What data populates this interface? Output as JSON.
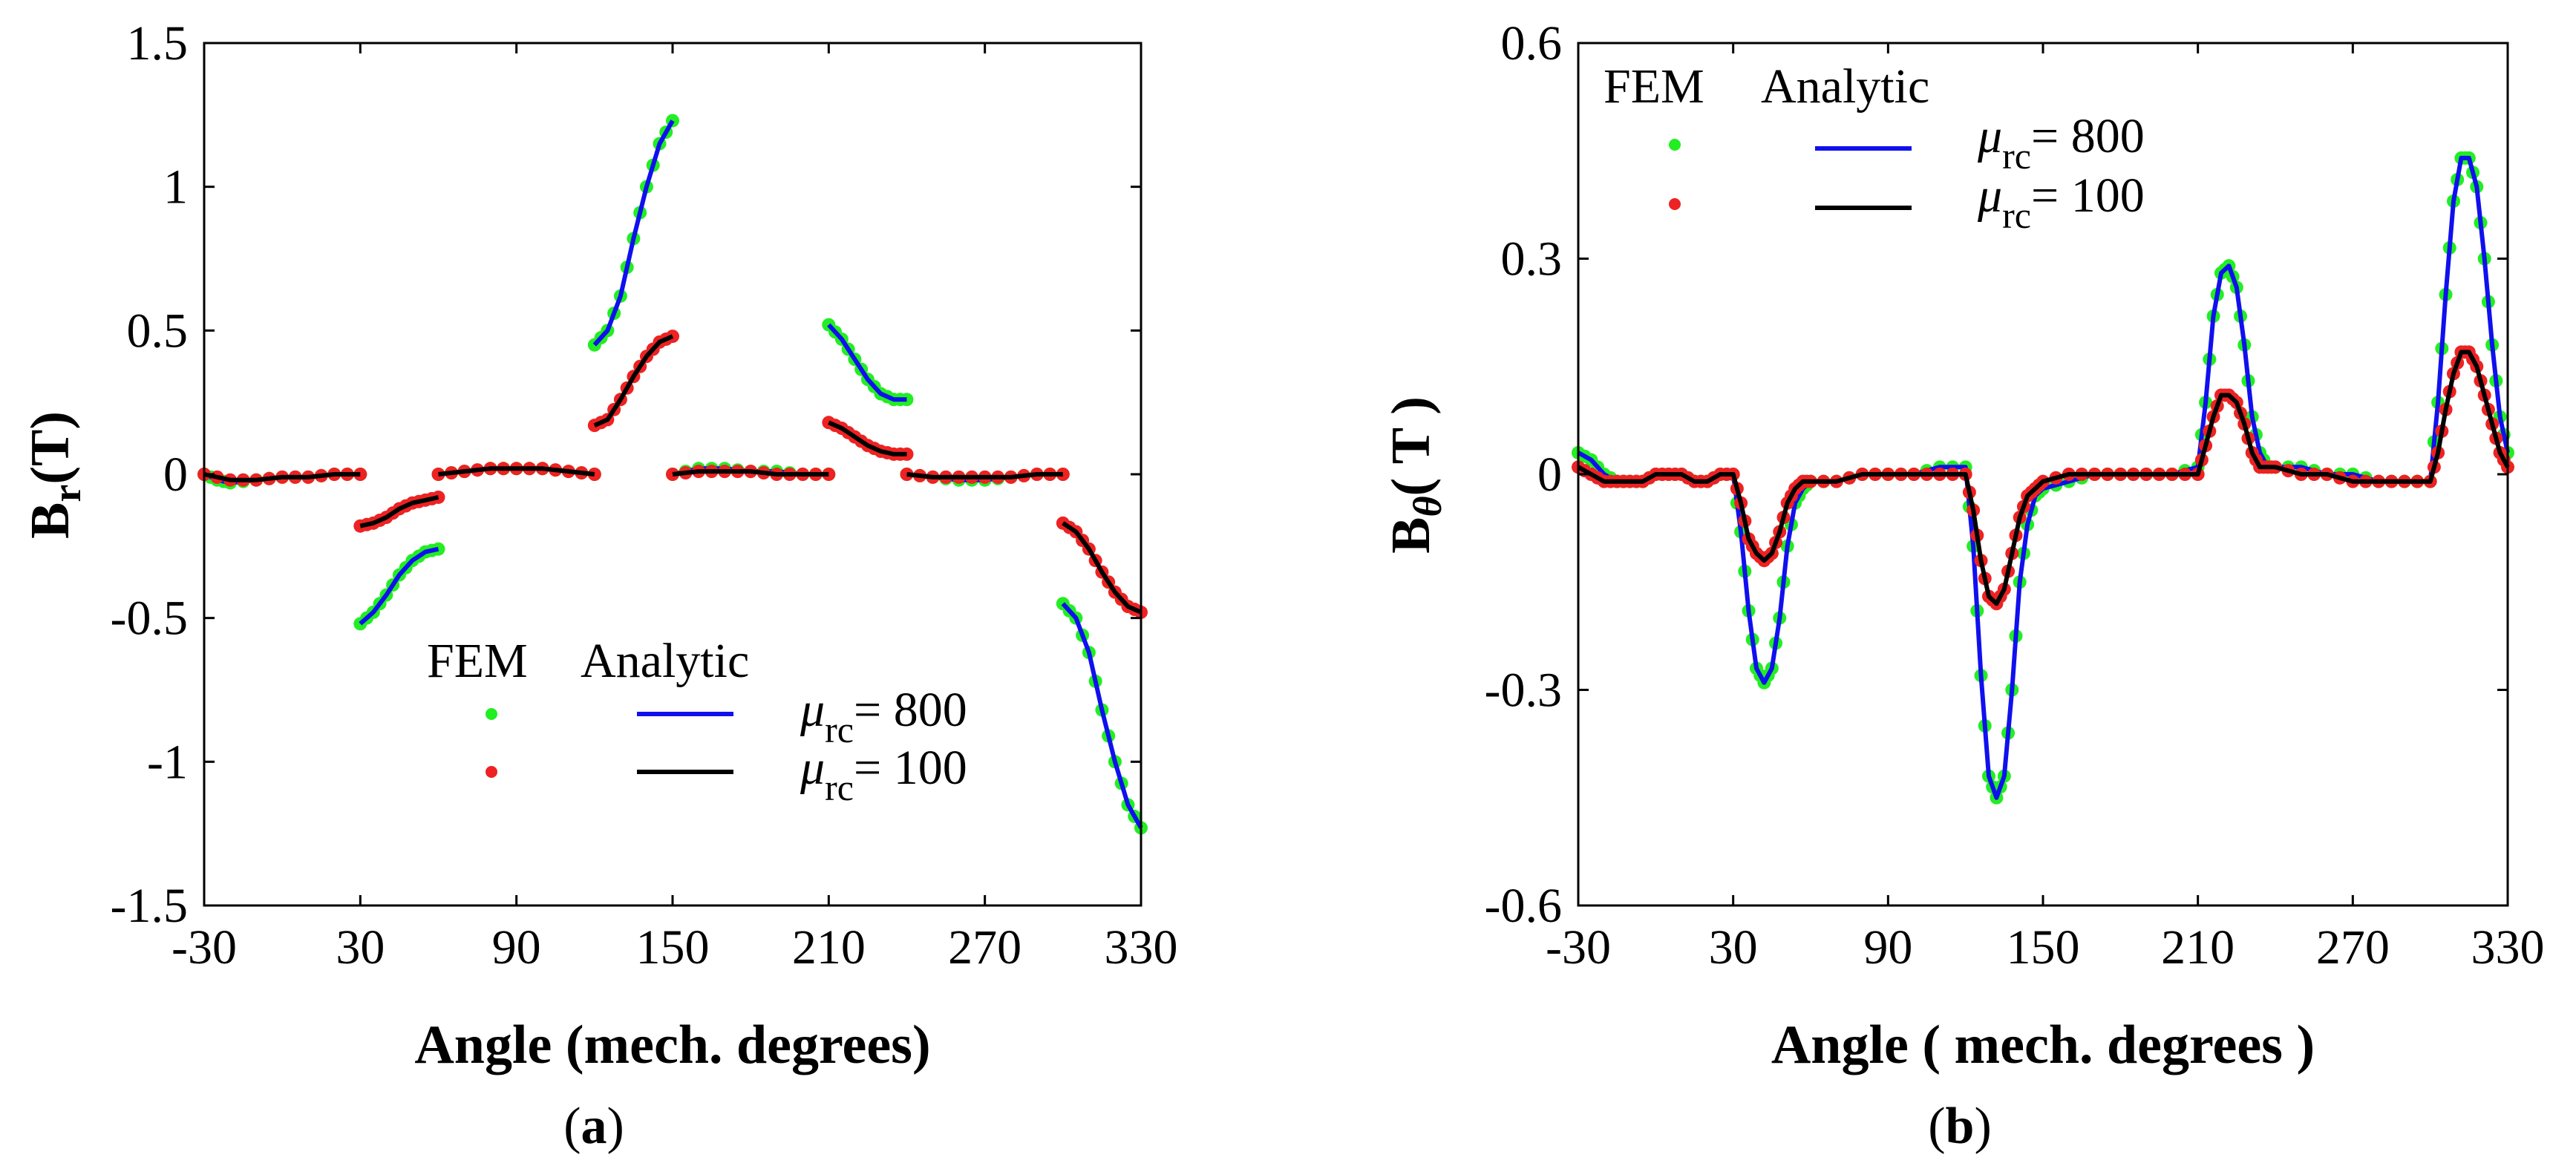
{
  "colors": {
    "fem_800": "#22ee22",
    "fem_100": "#ee2222",
    "analytic_800": "#1010ee",
    "analytic_100": "#000000",
    "axis": "#000000",
    "background": "#ffffff"
  },
  "chart_data": [
    {
      "type": "line",
      "panel_label_open": "(",
      "panel_label": "a",
      "panel_label_close": ")",
      "xlabel": "Angle (mech. degrees)",
      "ylabel_main": "B",
      "ylabel_sub": "r",
      "ylabel_unit": "(T)",
      "xlim": [
        -30,
        330
      ],
      "ylim": [
        -1.5,
        1.5
      ],
      "xticks": [
        "-30",
        "30",
        "90",
        "150",
        "210",
        "270",
        "330"
      ],
      "yticks": [
        "1.5",
        "1",
        "0.5",
        "0",
        "-0.5",
        "-1",
        "-1.5"
      ],
      "grid": false,
      "legend": {
        "placement": "bottom-right",
        "header_fem": "FEM",
        "header_analytic": "Analytic",
        "mu_symbol": "μ",
        "mu_sub": "rc",
        "entries": [
          "= 800",
          "= 100"
        ]
      },
      "series": [
        {
          "key": "mu800",
          "segments": [
            {
              "x": [
                -30,
                -25,
                -20,
                -10,
                0,
                10,
                20,
                30
              ],
              "y": [
                0,
                -0.02,
                -0.03,
                -0.02,
                -0.01,
                -0.01,
                0,
                0
              ]
            },
            {
              "x": [
                30,
                35,
                40,
                45,
                50,
                55,
                60
              ],
              "y": [
                -0.52,
                -0.48,
                -0.42,
                -0.35,
                -0.3,
                -0.27,
                -0.26
              ]
            },
            {
              "x": [
                60,
                70,
                80,
                90,
                100,
                110,
                120
              ],
              "y": [
                0,
                0.01,
                0.02,
                0.02,
                0.02,
                0.01,
                0
              ]
            },
            {
              "x": [
                120,
                125,
                130,
                135,
                140,
                145,
                150
              ],
              "y": [
                0.45,
                0.5,
                0.62,
                0.82,
                1.0,
                1.15,
                1.23
              ]
            },
            {
              "x": [
                150,
                160,
                170,
                180,
                190,
                200,
                210
              ],
              "y": [
                0,
                0.02,
                0.02,
                0.01,
                0.01,
                0,
                0
              ]
            },
            {
              "x": [
                210,
                215,
                220,
                225,
                230,
                235,
                240
              ],
              "y": [
                0.52,
                0.47,
                0.4,
                0.33,
                0.28,
                0.26,
                0.26
              ]
            },
            {
              "x": [
                240,
                250,
                260,
                270,
                280,
                290,
                300
              ],
              "y": [
                0,
                -0.01,
                -0.02,
                -0.02,
                -0.01,
                0,
                0
              ]
            },
            {
              "x": [
                300,
                305,
                310,
                315,
                320,
                325,
                330
              ],
              "y": [
                -0.45,
                -0.5,
                -0.62,
                -0.82,
                -1.0,
                -1.15,
                -1.23
              ]
            }
          ]
        },
        {
          "key": "mu100",
          "segments": [
            {
              "x": [
                -30,
                -20,
                -10,
                0,
                10,
                20,
                30
              ],
              "y": [
                0,
                -0.02,
                -0.02,
                -0.01,
                -0.01,
                0,
                0
              ]
            },
            {
              "x": [
                30,
                35,
                40,
                45,
                50,
                55,
                60
              ],
              "y": [
                -0.18,
                -0.17,
                -0.15,
                -0.12,
                -0.1,
                -0.09,
                -0.08
              ]
            },
            {
              "x": [
                60,
                70,
                80,
                90,
                100,
                110,
                120
              ],
              "y": [
                0,
                0.01,
                0.02,
                0.02,
                0.02,
                0.01,
                0
              ]
            },
            {
              "x": [
                120,
                125,
                130,
                135,
                140,
                145,
                150
              ],
              "y": [
                0.17,
                0.19,
                0.26,
                0.34,
                0.41,
                0.46,
                0.48
              ]
            },
            {
              "x": [
                150,
                160,
                170,
                180,
                190,
                200,
                210
              ],
              "y": [
                0,
                0.01,
                0.01,
                0.01,
                0,
                0,
                0
              ]
            },
            {
              "x": [
                210,
                215,
                220,
                225,
                230,
                235,
                240
              ],
              "y": [
                0.18,
                0.16,
                0.13,
                0.1,
                0.08,
                0.07,
                0.07
              ]
            },
            {
              "x": [
                240,
                250,
                260,
                270,
                280,
                290,
                300
              ],
              "y": [
                0,
                -0.01,
                -0.01,
                -0.01,
                -0.01,
                0,
                0
              ]
            },
            {
              "x": [
                300,
                305,
                310,
                315,
                320,
                325,
                330
              ],
              "y": [
                -0.17,
                -0.2,
                -0.26,
                -0.34,
                -0.41,
                -0.46,
                -0.48
              ]
            }
          ]
        }
      ]
    },
    {
      "type": "line",
      "panel_label_open": "(",
      "panel_label": "b",
      "panel_label_close": ")",
      "xlabel": "Angle ( mech. degrees )",
      "ylabel_main": "B",
      "ylabel_sub": "θ",
      "ylabel_unit": "( T )",
      "xlim": [
        -30,
        330
      ],
      "ylim": [
        -0.6,
        0.6
      ],
      "xticks": [
        "-30",
        "30",
        "90",
        "150",
        "210",
        "270",
        "330"
      ],
      "yticks": [
        "0.6",
        "0.3",
        "0",
        "-0.3",
        "-0.6"
      ],
      "grid": false,
      "legend": {
        "placement": "top-left",
        "header_fem": "FEM",
        "header_analytic": "Analytic",
        "mu_symbol": "μ",
        "mu_sub": "rc",
        "entries": [
          "= 800",
          "= 100"
        ]
      },
      "series": [
        {
          "key": "mu800",
          "x": [
            -30,
            -25,
            -20,
            -15,
            -10,
            -5,
            0,
            5,
            10,
            15,
            20,
            25,
            30,
            33,
            36,
            39,
            42,
            45,
            48,
            51,
            54,
            57,
            60,
            70,
            80,
            90,
            100,
            110,
            120,
            123,
            126,
            129,
            132,
            135,
            138,
            141,
            144,
            147,
            150,
            160,
            170,
            180,
            190,
            200,
            210,
            213,
            216,
            219,
            222,
            225,
            228,
            231,
            234,
            237,
            240,
            250,
            260,
            270,
            280,
            290,
            300,
            303,
            306,
            309,
            312,
            315,
            318,
            321,
            324,
            327,
            330
          ],
          "y": [
            0.03,
            0.02,
            0.0,
            -0.01,
            -0.01,
            -0.01,
            0.0,
            0.0,
            0.0,
            -0.01,
            -0.01,
            0.0,
            0.0,
            -0.08,
            -0.19,
            -0.27,
            -0.29,
            -0.27,
            -0.2,
            -0.1,
            -0.04,
            -0.02,
            -0.01,
            -0.01,
            0.0,
            0.0,
            0.0,
            0.01,
            0.01,
            -0.1,
            -0.28,
            -0.42,
            -0.45,
            -0.42,
            -0.3,
            -0.15,
            -0.07,
            -0.03,
            -0.02,
            -0.01,
            0.0,
            0.0,
            0.0,
            0.0,
            0.01,
            0.1,
            0.22,
            0.28,
            0.29,
            0.26,
            0.18,
            0.08,
            0.03,
            0.01,
            0.01,
            0.01,
            0.0,
            0.0,
            -0.01,
            -0.01,
            -0.01,
            0.1,
            0.25,
            0.38,
            0.44,
            0.44,
            0.4,
            0.3,
            0.18,
            0.08,
            0.03
          ]
        },
        {
          "key": "mu100",
          "x": [
            -30,
            -25,
            -20,
            -15,
            -10,
            -5,
            0,
            5,
            10,
            15,
            20,
            25,
            30,
            33,
            36,
            39,
            42,
            45,
            48,
            51,
            54,
            57,
            60,
            70,
            80,
            90,
            100,
            110,
            120,
            123,
            126,
            129,
            132,
            135,
            138,
            141,
            144,
            147,
            150,
            160,
            170,
            180,
            190,
            200,
            210,
            213,
            216,
            219,
            222,
            225,
            228,
            231,
            234,
            237,
            240,
            250,
            260,
            270,
            280,
            290,
            300,
            303,
            306,
            309,
            312,
            315,
            318,
            321,
            324,
            327,
            330
          ],
          "y": [
            0.01,
            0.0,
            -0.01,
            -0.01,
            -0.01,
            -0.01,
            0.0,
            0.0,
            0.0,
            -0.01,
            -0.01,
            0.0,
            0.0,
            -0.04,
            -0.09,
            -0.11,
            -0.12,
            -0.11,
            -0.08,
            -0.04,
            -0.02,
            -0.01,
            -0.01,
            -0.01,
            0.0,
            0.0,
            0.0,
            0.0,
            0.0,
            -0.05,
            -0.12,
            -0.17,
            -0.18,
            -0.16,
            -0.11,
            -0.06,
            -0.03,
            -0.02,
            -0.01,
            0.0,
            0.0,
            0.0,
            0.0,
            0.0,
            0.0,
            0.04,
            0.08,
            0.11,
            0.11,
            0.1,
            0.07,
            0.03,
            0.01,
            0.01,
            0.01,
            0.0,
            0.0,
            -0.01,
            -0.01,
            -0.01,
            -0.01,
            0.03,
            0.09,
            0.14,
            0.17,
            0.17,
            0.15,
            0.11,
            0.07,
            0.03,
            0.01
          ]
        }
      ]
    }
  ]
}
